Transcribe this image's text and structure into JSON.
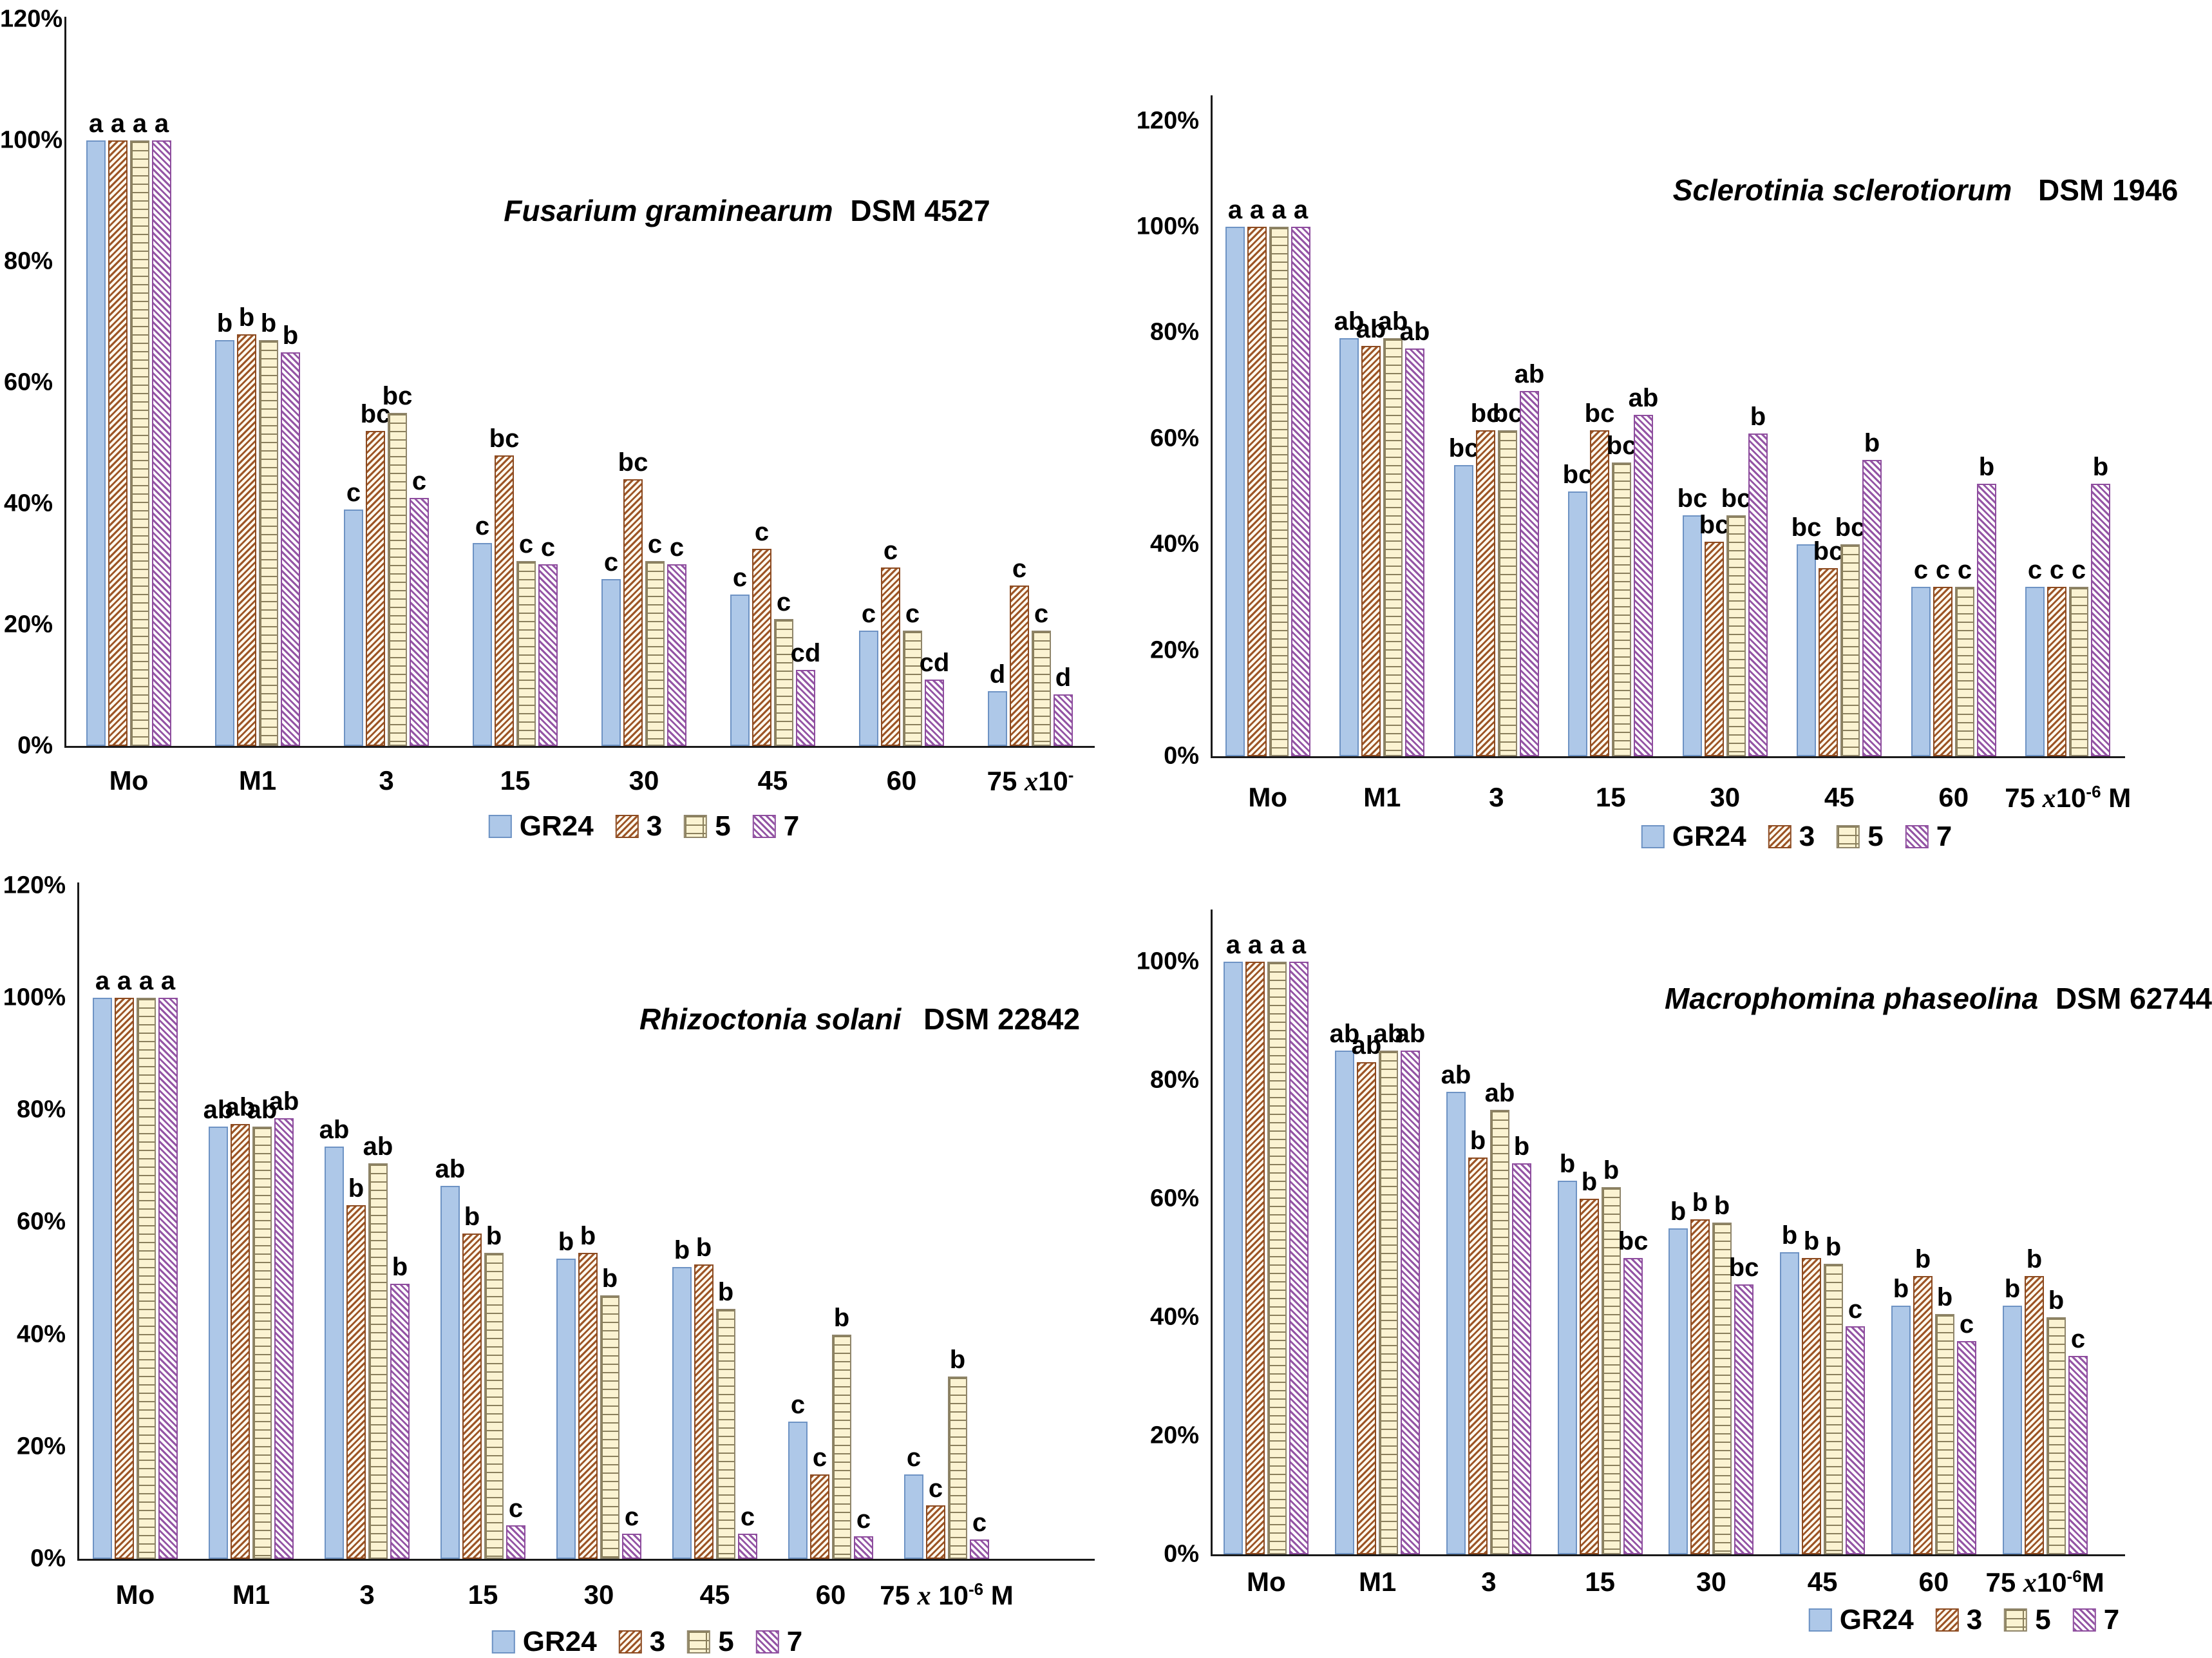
{
  "figure": {
    "background": "#ffffff",
    "description": "Mycelial growth (%) of four fungal pathogens treated with GR24 and compounds 3, 5, 7 at increasing concentrations"
  },
  "legend": {
    "items": [
      {
        "label": "GR24",
        "swatch": "gr24"
      },
      {
        "label": "3",
        "swatch": "s3"
      },
      {
        "label": "5",
        "swatch": "s5"
      },
      {
        "label": "7",
        "swatch": "s7"
      }
    ]
  },
  "series_styles": {
    "gr24": {
      "type": "solid",
      "fill": "#AEC8E8",
      "border": "#6E93C4"
    },
    "s3": {
      "type": "hatch-fwd",
      "stripe": "#9C5526",
      "bg": "#FFF9EF",
      "border": "#8C4A20"
    },
    "s5": {
      "type": "brick",
      "bg": "#FBF3D2",
      "line": "#8A7F5C",
      "border": "#8F856A"
    },
    "s7": {
      "type": "hatch-back",
      "stripe": "#9455A5",
      "bg": "#FFFFFF",
      "border": "#8E4D9E"
    }
  },
  "chart_data": [
    {
      "type": "bar",
      "title_species": "Fusarium graminearum",
      "title_code": "DSM 4527",
      "categories": [
        "Mo",
        "M1",
        "3",
        "15",
        "30",
        "45",
        "60",
        "75"
      ],
      "x_unit": {
        "x": "x",
        "ten": "10",
        "sup": "-",
        "unit": ""
      },
      "ylim": [
        0,
        120
      ],
      "yticks": [
        120,
        100,
        80,
        60,
        40,
        20,
        0
      ],
      "series": [
        {
          "name": "GR24",
          "values": [
            100,
            67,
            39,
            33.5,
            27.5,
            25,
            19,
            9
          ],
          "letters": [
            "a",
            "b",
            "c",
            "c",
            "c",
            "c",
            "c",
            "d"
          ]
        },
        {
          "name": "3",
          "values": [
            100,
            68,
            52,
            48,
            44,
            32.5,
            29.5,
            26.5
          ],
          "letters": [
            "a",
            "b",
            "bc",
            "bc",
            "bc",
            "c",
            "c",
            "c"
          ]
        },
        {
          "name": "5",
          "values": [
            100,
            67,
            55,
            30.5,
            30.5,
            21,
            19,
            19
          ],
          "letters": [
            "a",
            "b",
            "bc",
            "c",
            "c",
            "c",
            "c",
            "c"
          ]
        },
        {
          "name": "7",
          "values": [
            100,
            65,
            41,
            30,
            30,
            12.5,
            11,
            8.5
          ],
          "letters": [
            "a",
            "b",
            "c",
            "c",
            "c",
            "cd",
            "cd",
            "d"
          ]
        }
      ]
    },
    {
      "type": "bar",
      "title_species": "Sclerotinia sclerotiorum",
      "title_code": "DSM 1946",
      "categories": [
        "Mo",
        "M1",
        "3",
        "15",
        "30",
        "45",
        "60",
        "75"
      ],
      "x_unit": {
        "x": "x",
        "ten": "10",
        "sup": "-6",
        "unit": " M"
      },
      "ylim": [
        0,
        120
      ],
      "yticks": [
        120,
        100,
        80,
        60,
        40,
        20,
        0
      ],
      "series": [
        {
          "name": "GR24",
          "values": [
            100,
            79,
            55,
            50,
            45.5,
            40,
            32,
            32
          ],
          "letters": [
            "a",
            "ab",
            "bc",
            "bc",
            "bc",
            "bc",
            "c",
            "c"
          ]
        },
        {
          "name": "3",
          "values": [
            100,
            77.5,
            61.5,
            61.5,
            40.5,
            35.5,
            32,
            32
          ],
          "letters": [
            "a",
            "ab",
            "bc",
            "bc",
            "bc",
            "bc",
            "c",
            "c"
          ]
        },
        {
          "name": "5",
          "values": [
            100,
            79,
            61.5,
            55.5,
            45.5,
            40,
            32,
            32
          ],
          "letters": [
            "a",
            "ab",
            "bc",
            "bc",
            "bc",
            "bc",
            "c",
            "c"
          ]
        },
        {
          "name": "7",
          "values": [
            100,
            77,
            69,
            64.5,
            61,
            56,
            51.5,
            51.5
          ],
          "letters": [
            "a",
            "ab",
            "ab",
            "ab",
            "b",
            "b",
            "b",
            "b"
          ]
        }
      ]
    },
    {
      "type": "bar",
      "title_species": "Rhizoctonia solani",
      "title_code": "DSM 22842",
      "categories": [
        "Mo",
        "M1",
        "3",
        "15",
        "30",
        "45",
        "60",
        "75"
      ],
      "x_unit": {
        "x": "x",
        "ten": " 10",
        "sup": "-6",
        "unit": " M"
      },
      "ylim": [
        0,
        120
      ],
      "yticks": [
        120,
        100,
        80,
        60,
        40,
        20,
        0
      ],
      "series": [
        {
          "name": "GR24",
          "values": [
            100,
            77,
            73.5,
            66.5,
            53.5,
            52,
            24.5,
            15
          ],
          "letters": [
            "a",
            "ab",
            "ab",
            "ab",
            "b",
            "b",
            "c",
            "c"
          ]
        },
        {
          "name": "3",
          "values": [
            100,
            77.5,
            63,
            58,
            54.5,
            52.5,
            15,
            9.5
          ],
          "letters": [
            "a",
            "ab",
            "b",
            "b",
            "b",
            "b",
            "c",
            "c"
          ]
        },
        {
          "name": "5",
          "values": [
            100,
            77,
            70.5,
            54.5,
            47,
            44.5,
            40,
            32.5
          ],
          "letters": [
            "a",
            "ab",
            "ab",
            "b",
            "b",
            "b",
            "b",
            "b"
          ]
        },
        {
          "name": "7",
          "values": [
            100,
            78.5,
            49,
            6,
            4.5,
            4.5,
            4,
            3.5
          ],
          "letters": [
            "a",
            "ab",
            "b",
            "c",
            "c",
            "c",
            "c",
            "c"
          ]
        }
      ]
    },
    {
      "type": "bar",
      "title_species": "Macrophomina phaseolina",
      "title_code": "DSM 62744",
      "categories": [
        "Mo",
        "M1",
        "3",
        "15",
        "30",
        "45",
        "60",
        "75"
      ],
      "x_unit": {
        "x": "x",
        "ten": "10",
        "sup": "-6",
        "unit": "M"
      },
      "ylim": [
        0,
        110
      ],
      "yticks": [
        100,
        80,
        60,
        40,
        20,
        0
      ],
      "series": [
        {
          "name": "GR24",
          "values": [
            100,
            85,
            78,
            63,
            55,
            51,
            42,
            42
          ],
          "letters": [
            "a",
            "ab",
            "ab",
            "b",
            "b",
            "b",
            "b",
            "b"
          ]
        },
        {
          "name": "3",
          "values": [
            100,
            83,
            67,
            60,
            56.5,
            50,
            47,
            47
          ],
          "letters": [
            "a",
            "ab",
            "b",
            "b",
            "b",
            "b",
            "b",
            "b"
          ]
        },
        {
          "name": "5",
          "values": [
            100,
            85,
            75,
            62,
            56,
            49,
            40.5,
            40
          ],
          "letters": [
            "a",
            "ab",
            "ab",
            "b",
            "b",
            "b",
            "b",
            "b"
          ]
        },
        {
          "name": "7",
          "values": [
            100,
            85,
            66,
            50,
            45.5,
            38.5,
            36,
            33.5
          ],
          "letters": [
            "a",
            "ab",
            "b",
            "bc",
            "bc",
            "c",
            "c",
            "c"
          ]
        }
      ]
    }
  ]
}
